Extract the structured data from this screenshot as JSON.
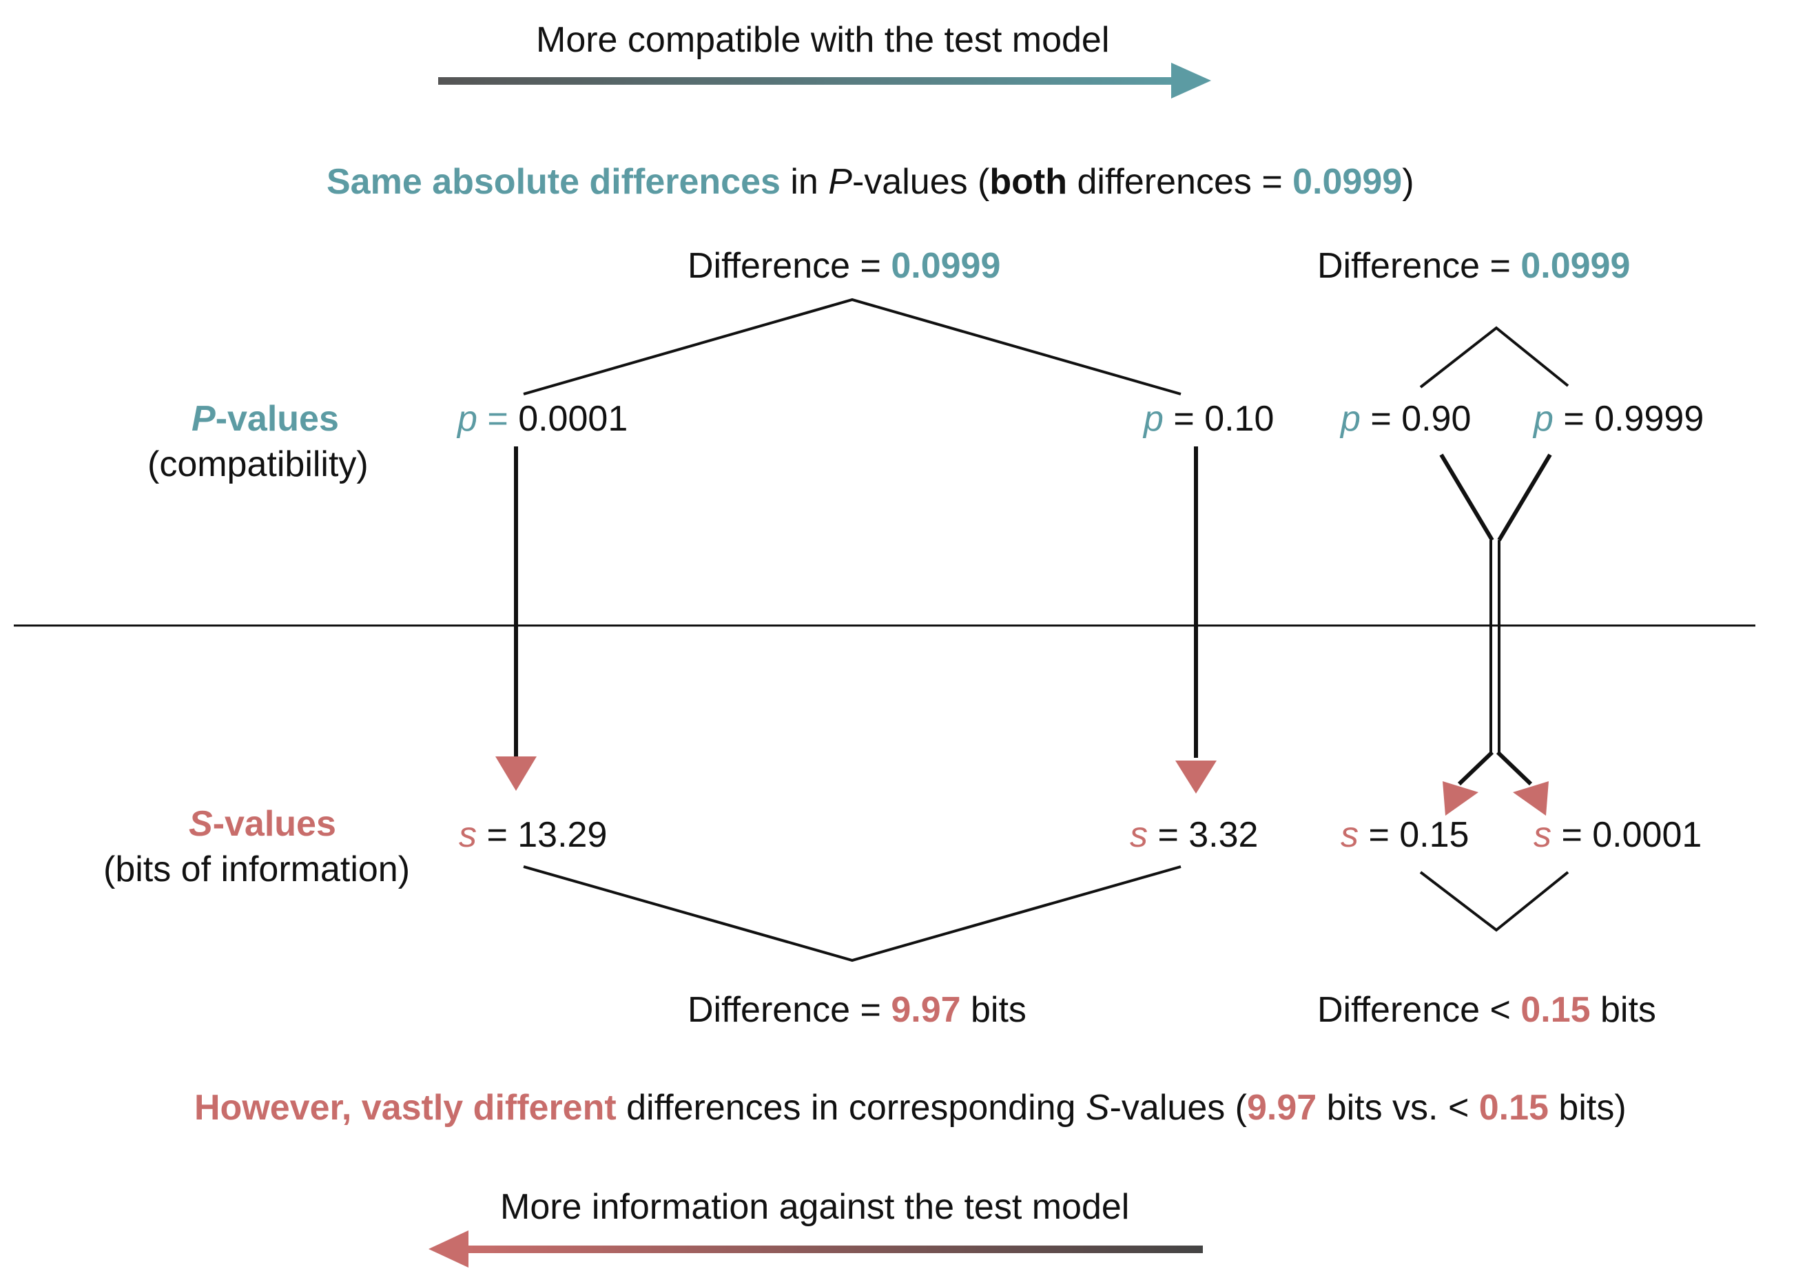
{
  "colors": {
    "teal": "#5c9ba3",
    "red": "#c86d6b",
    "dark": "#111111",
    "gray": "#555555"
  },
  "top_arrow": {
    "label": "More compatible with the test model"
  },
  "bottom_arrow": {
    "label": "More information against the test model"
  },
  "headline_p": {
    "part1": "Same absolute differences",
    "part2": " in ",
    "part3": "P",
    "part4": "-values (",
    "part5": "both",
    "part6": " differences = ",
    "part7": "0.0999",
    "part8": ")"
  },
  "headline_s": {
    "part1": "However, vastly different",
    "part2": " differences in corresponding ",
    "part3": "S",
    "part4": "-values (",
    "part5": "9.97",
    "part6": " bits vs. < ",
    "part7": "0.15",
    "part8": " bits)"
  },
  "p_row": {
    "label_italic": "P",
    "label_rest": "-values",
    "sublabel": "(compatibility)",
    "symbol": "p",
    "eq": " = ",
    "values": [
      "0.0001",
      "0.10",
      "0.90",
      "0.9999"
    ]
  },
  "s_row": {
    "label_italic": "S",
    "label_rest": "-values",
    "sublabel": "(bits of information)",
    "symbol": "s",
    "eq": " = ",
    "values": [
      "13.29",
      "3.32",
      "0.15",
      "0.0001"
    ]
  },
  "diff_p_left": {
    "prefix": "Difference = ",
    "value": "0.0999"
  },
  "diff_p_right": {
    "prefix": "Difference = ",
    "value": "0.0999"
  },
  "diff_s_left": {
    "prefix": "Difference = ",
    "value": "9.97",
    "unit": " bits"
  },
  "diff_s_right": {
    "prefix": "Difference < ",
    "value": "0.15",
    "unit": " bits"
  }
}
